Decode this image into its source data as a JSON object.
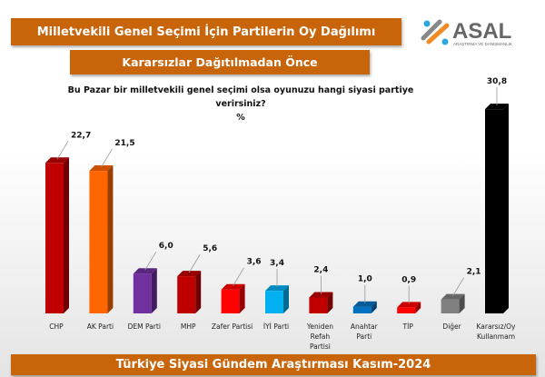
{
  "header": {
    "title": "Milletvekili Genel Seçimi İçin Partilerin Oy Dağılımı",
    "subtitle": "Kararsızlar Dağıtılmadan Önce",
    "logo_text": "ASAL",
    "logo_subtext": "ARAŞTIRMA VE DANIŞMANLIK"
  },
  "footer": {
    "text": "Türkiye Siyasi Gündem Araştırması Kasım-2024"
  },
  "chart_data": {
    "type": "bar",
    "title": "Bu Pazar bir milletvekili genel seçimi olsa oyunuzu hangi siyasi partiye verirsiniz?",
    "ylabel": "%",
    "categories": [
      "CHP",
      "AK Parti",
      "DEM Parti",
      "MHP",
      "Zafer Partisi",
      "İYİ Parti",
      "Yeniden Refah Partisi",
      "Anahtar Parti",
      "TİP",
      "Diğer",
      "Kararsız/Oy Kullanmam"
    ],
    "values": [
      22.7,
      21.5,
      6.0,
      5.6,
      3.6,
      3.4,
      2.4,
      1.0,
      0.9,
      2.1,
      30.8
    ],
    "labels": [
      "22,7",
      "21,5",
      "6,0",
      "5,6",
      "3,6",
      "3,4",
      "2,4",
      "1,0",
      "0,9",
      "2,1",
      "30,8"
    ],
    "colors": [
      "#c00000",
      "#ff6600",
      "#7030a0",
      "#c00000",
      "#ff0000",
      "#00b0f0",
      "#c00000",
      "#0070c0",
      "#ff0000",
      "#808080",
      "#000000"
    ],
    "ylim": [
      0,
      32
    ],
    "grid": false,
    "legend": "none"
  }
}
